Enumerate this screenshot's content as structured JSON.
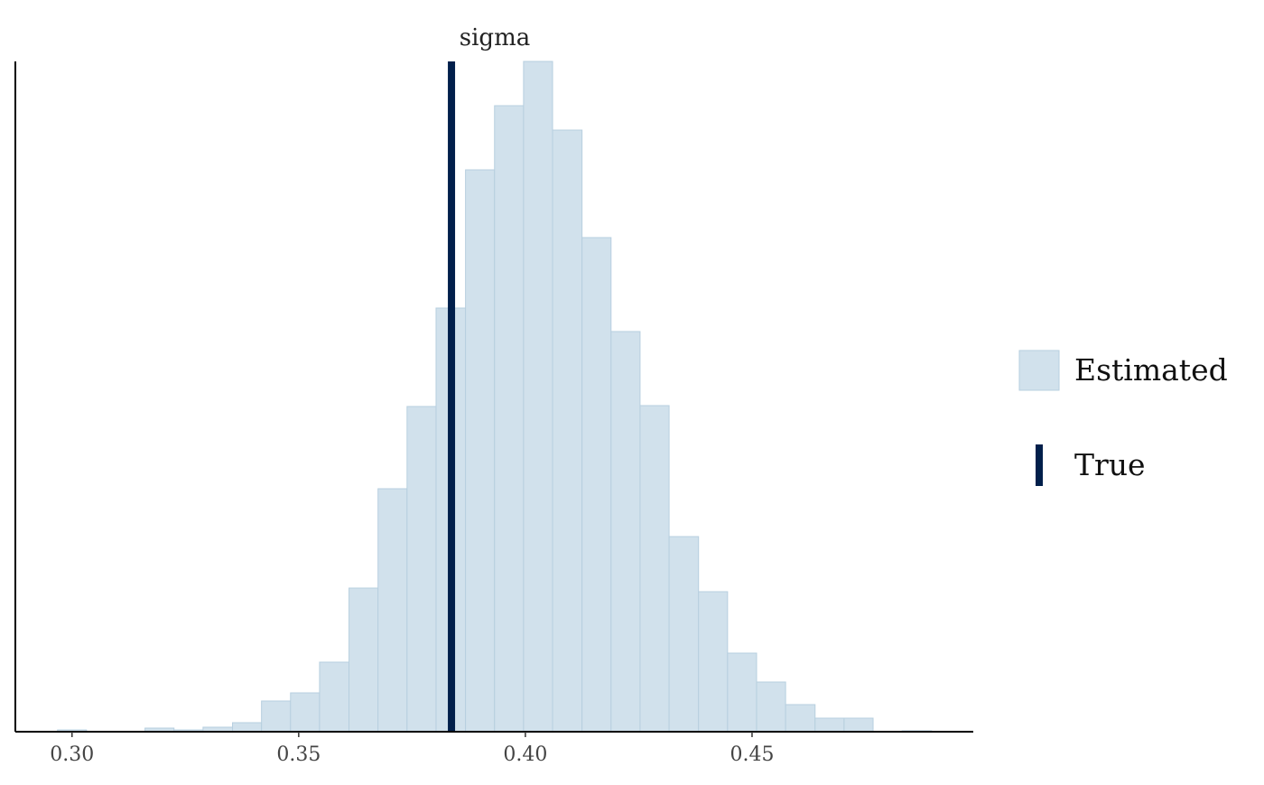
{
  "chart_data": {
    "type": "histogram",
    "title": "sigma",
    "bins": [
      0.2968,
      0.3032,
      0.3097,
      0.3161,
      0.3225,
      0.3289,
      0.3354,
      0.3418,
      0.3482,
      0.3546,
      0.3611,
      0.3675,
      0.3739,
      0.3803,
      0.3868,
      0.3932,
      0.3996,
      0.406,
      0.4125,
      0.4189,
      0.4253,
      0.4317,
      0.4382,
      0.4446,
      0.451,
      0.4574,
      0.4639,
      0.4703,
      0.4767,
      0.4831,
      0.4896
    ],
    "series": [
      {
        "name": "Estimated",
        "color": "#d1e1ec",
        "values": [
          2,
          0,
          0,
          4,
          2,
          5,
          10,
          34,
          43,
          77,
          159,
          269,
          360,
          469,
          622,
          693,
          742,
          666,
          547,
          443,
          361,
          216,
          155,
          87,
          55,
          30,
          15,
          15,
          0,
          1
        ]
      }
    ],
    "lines": [
      {
        "name": "True",
        "color": "#011f4b",
        "x": 0.3837
      }
    ],
    "xlim": [
      0.2875,
      0.4988
    ],
    "xticks": [
      {
        "value": 0.3,
        "label": "0.30"
      },
      0.35,
      {
        "value": 0.4,
        "label": "0.40"
      },
      0.45
    ],
    "ylim": [
      0,
      742
    ]
  }
}
